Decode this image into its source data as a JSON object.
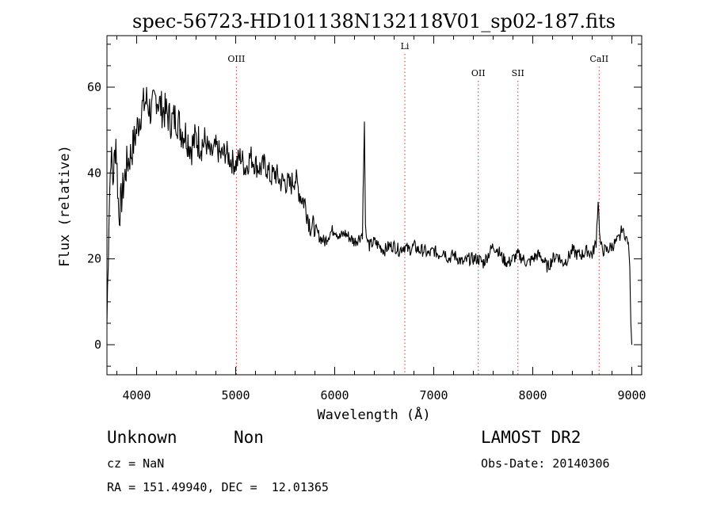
{
  "chart_data": {
    "type": "line",
    "title": "spec-56723-HD101138N132118V01_sp02-187.fits",
    "xlabel": "Wavelength (Å)",
    "ylabel": "Flux (relative)",
    "xlim": [
      3700,
      9100
    ],
    "ylim": [
      -7,
      72
    ],
    "x_ticks": [
      4000,
      5000,
      6000,
      7000,
      8000,
      9000
    ],
    "y_ticks": [
      0,
      20,
      40,
      60
    ],
    "grid": false,
    "series": [
      {
        "x": [
          3700,
          3720,
          3740,
          3760,
          3790,
          3820,
          3860,
          3900,
          3950,
          4000,
          4050,
          4100,
          4150,
          4200,
          4250,
          4300,
          4350,
          4400,
          4450,
          4500,
          4550,
          4600,
          4650,
          4700,
          4750,
          4800,
          4850,
          4900,
          4950,
          5000,
          5050,
          5100,
          5150,
          5200,
          5250,
          5300,
          5350,
          5400,
          5450,
          5500,
          5550,
          5600,
          5650,
          5700,
          5750,
          5800,
          5850,
          5900,
          5950,
          6000,
          6050,
          6100,
          6150,
          6200,
          6250,
          6280,
          6300,
          6310,
          6320,
          6350,
          6400,
          6450,
          6500,
          6550,
          6600,
          6650,
          6700,
          6750,
          6800,
          6850,
          6900,
          6950,
          7000,
          7050,
          7100,
          7150,
          7200,
          7250,
          7300,
          7350,
          7400,
          7450,
          7500,
          7550,
          7600,
          7650,
          7700,
          7750,
          7800,
          7850,
          7900,
          7950,
          8000,
          8050,
          8100,
          8150,
          8200,
          8250,
          8300,
          8350,
          8400,
          8450,
          8500,
          8550,
          8600,
          8640,
          8660,
          8680,
          8700,
          8750,
          8800,
          8850,
          8880,
          8900,
          8920,
          8940,
          8960,
          8970,
          8980,
          8990,
          9000
        ],
        "y": [
          5,
          30,
          45,
          38,
          48,
          30,
          36,
          42,
          45,
          50,
          55,
          57,
          54,
          58,
          55,
          54,
          52,
          53,
          50,
          49,
          46,
          48,
          47,
          47,
          44,
          46,
          44,
          45,
          43,
          42,
          44,
          41,
          44,
          42,
          41,
          42,
          39,
          40,
          38,
          38,
          37,
          39,
          35,
          33,
          28,
          27,
          25,
          24,
          26,
          27,
          25,
          26,
          25,
          24,
          25,
          26,
          52,
          28,
          25,
          23,
          24,
          23,
          22,
          23,
          23,
          22,
          23,
          22,
          23,
          22,
          22,
          21,
          22,
          21,
          22,
          20,
          21,
          20,
          19,
          20,
          20,
          20,
          19,
          21,
          23,
          22,
          20,
          19,
          20,
          21,
          20,
          19,
          20,
          21,
          20,
          18,
          20,
          21,
          19,
          20,
          22,
          21,
          21,
          22,
          21,
          24,
          34,
          24,
          22,
          22,
          23,
          24,
          25,
          27,
          26,
          25,
          24,
          22,
          18,
          5,
          0
        ]
      }
    ],
    "annotations": [
      {
        "label": "OIII",
        "x": 5007,
        "color": "#cc3333"
      },
      {
        "label": "Li",
        "x": 6708,
        "color": "#cc3333"
      },
      {
        "label": "OII",
        "x": 7450,
        "color": "#cc3333"
      },
      {
        "label": "SII",
        "x": 7850,
        "color": "#cc3333"
      },
      {
        "label": "CaII",
        "x": 8670,
        "color": "#cc3333"
      }
    ]
  },
  "info": {
    "object_type": "Unknown",
    "object_class": "Non",
    "survey": "LAMOST DR2",
    "cz": "cz = NaN",
    "obs_date": "Obs-Date: 20140306",
    "coords": "RA = 151.49940, DEC =  12.01365"
  }
}
